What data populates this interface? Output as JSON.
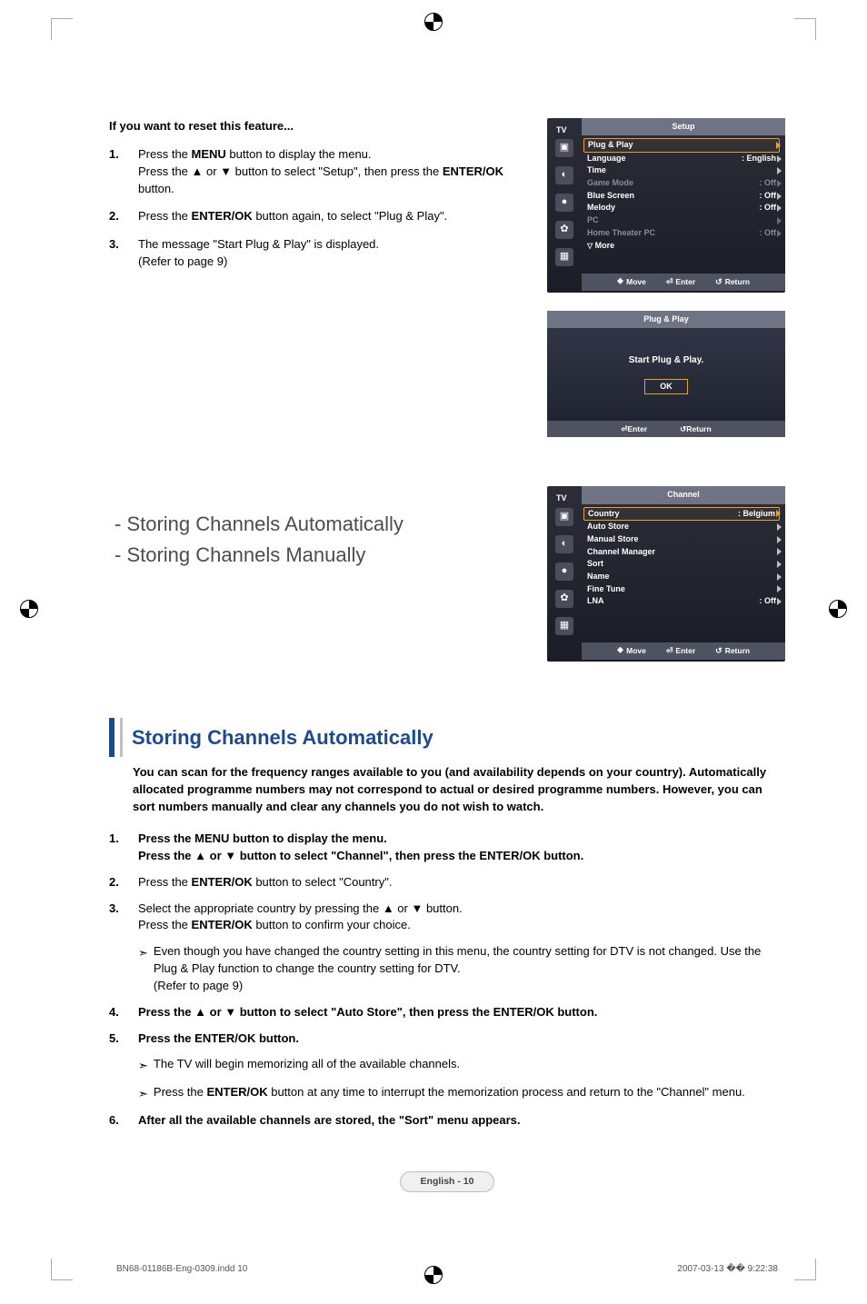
{
  "colors": {
    "heading_blue": "#1e4a8a",
    "osd_bg_top": "#2b2e38",
    "osd_bg_bottom": "#1a1d26",
    "osd_title_bg": "#6f7384",
    "osd_footer_bg": "#4f5260",
    "osd_highlight": "#e8a030",
    "osd_dim": "#8a8d99",
    "pageno_border": "#bdbdbd",
    "pageno_bg": "#f0f0f0"
  },
  "reset": {
    "heading": "If you want to reset this feature...",
    "steps": [
      {
        "n": "1.",
        "text": "Press the MENU button to display the menu.\nPress the ▲ or ▼ button to select \"Setup\", then press the ENTER/OK button.",
        "bolds": [
          "MENU",
          "ENTER/OK"
        ]
      },
      {
        "n": "2.",
        "text": "Press the ENTER/OK button again, to select \"Plug & Play\".",
        "bolds": [
          "ENTER/OK"
        ]
      },
      {
        "n": "3.",
        "text": "The message \"Start Plug & Play\" is displayed.\n(Refer to page 9)"
      }
    ]
  },
  "osd_setup": {
    "tab": "TV",
    "title": "Setup",
    "rows": [
      {
        "label": "Plug & Play",
        "value": "",
        "selected": true,
        "dim": false,
        "tri": true
      },
      {
        "label": "Language",
        "value": ": English",
        "dim": false,
        "tri": true
      },
      {
        "label": "Time",
        "value": "",
        "dim": false,
        "tri": true
      },
      {
        "label": "Game Mode",
        "value": ": Off",
        "dim": true,
        "tri": true
      },
      {
        "label": "Blue Screen",
        "value": ": Off",
        "dim": false,
        "tri": true
      },
      {
        "label": "Melody",
        "value": ": Off",
        "dim": false,
        "tri": true
      },
      {
        "label": "PC",
        "value": "",
        "dim": true,
        "tri": true
      },
      {
        "label": "Home Theater PC",
        "value": ": Off",
        "dim": true,
        "tri": true
      }
    ],
    "more": "▽ More",
    "footer": [
      {
        "sym": "⯁",
        "text": "Move"
      },
      {
        "sym": "⏎",
        "text": "Enter"
      },
      {
        "sym": "↺",
        "text": "Return"
      }
    ]
  },
  "osd_pp": {
    "title": "Plug & Play",
    "message": "Start Plug & Play.",
    "ok": "OK",
    "footer": [
      {
        "sym": "⏎",
        "text": "Enter"
      },
      {
        "sym": "↺",
        "text": "Return"
      }
    ]
  },
  "storing_links": {
    "a": "- Storing Channels Automatically",
    "b": "- Storing Channels Manually"
  },
  "osd_channel": {
    "tab": "TV",
    "title": "Channel",
    "rows": [
      {
        "label": "Country",
        "value": ": Belgium",
        "selected": true,
        "tri": true
      },
      {
        "label": "Auto Store",
        "value": "",
        "tri": true
      },
      {
        "label": "Manual Store",
        "value": "",
        "tri": true
      },
      {
        "label": "Channel Manager",
        "value": "",
        "tri": true
      },
      {
        "label": "Sort",
        "value": "",
        "tri": true
      },
      {
        "label": "Name",
        "value": "",
        "tri": true
      },
      {
        "label": "Fine Tune",
        "value": "",
        "tri": true
      },
      {
        "label": "LNA",
        "value": ": Off",
        "tri": true
      }
    ],
    "footer": [
      {
        "sym": "⯁",
        "text": "Move"
      },
      {
        "sym": "⏎",
        "text": "Enter"
      },
      {
        "sym": "↺",
        "text": "Return"
      }
    ]
  },
  "auto": {
    "heading": "Storing Channels Automatically",
    "lead": "You can scan for the frequency ranges available to you (and availability depends on your country). Automatically allocated programme numbers may not correspond to actual or desired programme numbers. However, you can sort numbers manually and clear any channels you do not wish to watch.",
    "items": [
      {
        "n": "1.",
        "bold": true,
        "html": "Press the <b>MENU</b> button to display the menu.<br>Press the ▲ or ▼ button to select \"Channel\", then press the <b>ENTER/OK</b> button."
      },
      {
        "n": "2.",
        "bold": false,
        "html": "Press the <b>ENTER/OK</b> button to select \"Country\"."
      },
      {
        "n": "3.",
        "bold": false,
        "html": "Select the appropriate country by pressing the ▲ or ▼ button.<br>Press the <b>ENTER/OK</b> button to confirm your choice."
      },
      {
        "arrow": true,
        "html": "Even though you have changed the country setting in this menu, the country setting for DTV is not changed. Use the Plug & Play function to change the country setting for DTV.<br>(Refer to page 9)"
      },
      {
        "n": "4.",
        "bold": true,
        "html": "Press the ▲ or ▼ button to select \"Auto Store\", then press the <b>ENTER/OK</b> button."
      },
      {
        "n": "5.",
        "bold": true,
        "html": "Press the <b>ENTER/OK</b> button."
      },
      {
        "arrow": true,
        "html": "The TV will begin memorizing all of the available channels."
      },
      {
        "arrow": true,
        "html": "Press the <b>ENTER/OK</b> button at any time to interrupt the memorization process and return to the \"Channel\" menu."
      },
      {
        "n": "6.",
        "bold": true,
        "html": "After all the available channels are stored, the \"Sort\" menu appears."
      }
    ]
  },
  "page_number": "English - 10",
  "footer_left": "BN68-01186B-Eng-0309.indd   10",
  "footer_right": "2007-03-13   �� 9:22:38"
}
